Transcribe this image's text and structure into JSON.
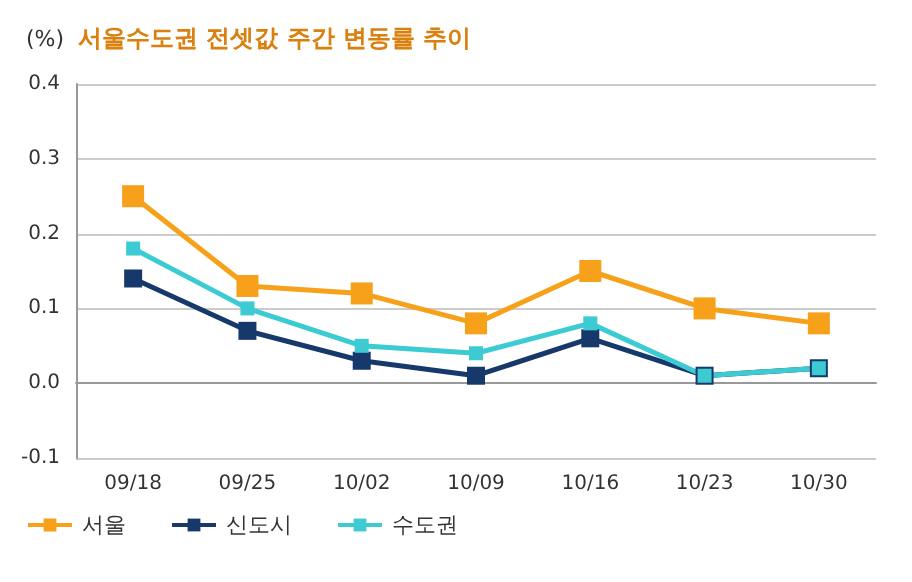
{
  "chart_data": {
    "type": "line",
    "title": "서울수도권 전셋값 주간 변동률 추이",
    "ylabel": "(%)",
    "categories": [
      "09/18",
      "09/25",
      "10/02",
      "10/09",
      "10/16",
      "10/23",
      "10/30"
    ],
    "series": [
      {
        "name": "서울",
        "color": "#f7a01a",
        "values": [
          0.25,
          0.13,
          0.12,
          0.08,
          0.15,
          0.1,
          0.08
        ]
      },
      {
        "name": "신도시",
        "color": "#17386b",
        "values": [
          0.14,
          0.07,
          0.03,
          0.01,
          0.06,
          0.01,
          0.02
        ]
      },
      {
        "name": "수도권",
        "color": "#3ccbd2",
        "values": [
          0.18,
          0.1,
          0.05,
          0.04,
          0.08,
          0.01,
          0.02
        ]
      }
    ],
    "ylim": [
      -0.1,
      0.4
    ],
    "yticks": [
      {
        "value": -0.1,
        "label": "-0.1"
      },
      {
        "value": 0,
        "label": "0.0"
      },
      {
        "value": 0.1,
        "label": "0.1"
      },
      {
        "value": 0.2,
        "label": "0.2"
      },
      {
        "value": 0.3,
        "label": "0.3"
      },
      {
        "value": 0.4,
        "label": "0.4"
      }
    ],
    "grid": "y",
    "legend": "bottom left",
    "marker": "square",
    "line_style": "solid"
  }
}
